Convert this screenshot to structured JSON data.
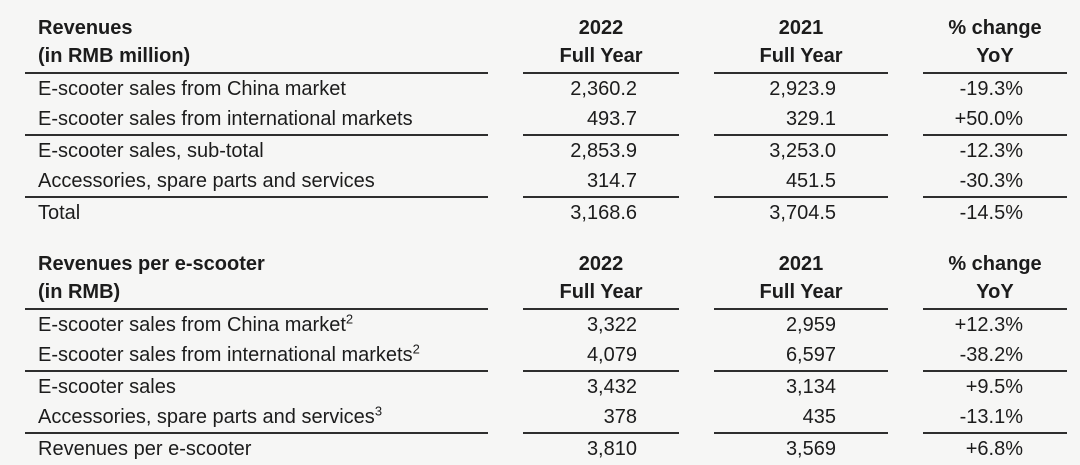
{
  "colors": {
    "background": "#f6f6f5",
    "text": "#1c1c1c",
    "rule": "#2e2e2e"
  },
  "tables": [
    {
      "title_line1": "Revenues",
      "title_line2": "(in RMB million)",
      "columns": [
        {
          "line1": "2022",
          "line2": "Full Year"
        },
        {
          "line1": "2021",
          "line2": "Full Year"
        },
        {
          "line1": "% change",
          "line2": "YoY"
        }
      ],
      "rows": [
        {
          "label": "E-scooter sales from China market",
          "sup": "",
          "v2022": "2,360.2",
          "v2021": "2,923.9",
          "yoy": "-19.3%"
        },
        {
          "label": "E-scooter sales from international markets",
          "sup": "",
          "v2022": "493.7",
          "v2021": "329.1",
          "yoy": "+50.0%"
        },
        {
          "label": "E-scooter sales, sub-total",
          "sup": "",
          "v2022": "2,853.9",
          "v2021": "3,253.0",
          "yoy": "-12.3%"
        },
        {
          "label": "Accessories, spare parts and services",
          "sup": "",
          "v2022": "314.7",
          "v2021": "451.5",
          "yoy": "-30.3%"
        },
        {
          "label": "Total",
          "sup": "",
          "v2022": "3,168.6",
          "v2021": "3,704.5",
          "yoy": "-14.5%"
        }
      ]
    },
    {
      "title_line1": "Revenues per e-scooter",
      "title_line2": "(in RMB)",
      "columns": [
        {
          "line1": "2022",
          "line2": "Full Year"
        },
        {
          "line1": "2021",
          "line2": "Full Year"
        },
        {
          "line1": "% change",
          "line2": "YoY"
        }
      ],
      "rows": [
        {
          "label": "E-scooter sales from China market",
          "sup": "2",
          "v2022": "3,322",
          "v2021": "2,959",
          "yoy": "+12.3%"
        },
        {
          "label": "E-scooter sales from international markets",
          "sup": "2",
          "v2022": "4,079",
          "v2021": "6,597",
          "yoy": "-38.2%"
        },
        {
          "label": "E-scooter sales",
          "sup": "",
          "v2022": "3,432",
          "v2021": "3,134",
          "yoy": "+9.5%"
        },
        {
          "label": "Accessories, spare parts and services",
          "sup": "3",
          "v2022": "378",
          "v2021": "435",
          "yoy": "-13.1%"
        },
        {
          "label": "Revenues per e-scooter",
          "sup": "",
          "v2022": "3,810",
          "v2021": "3,569",
          "yoy": "+6.8%"
        }
      ]
    }
  ]
}
